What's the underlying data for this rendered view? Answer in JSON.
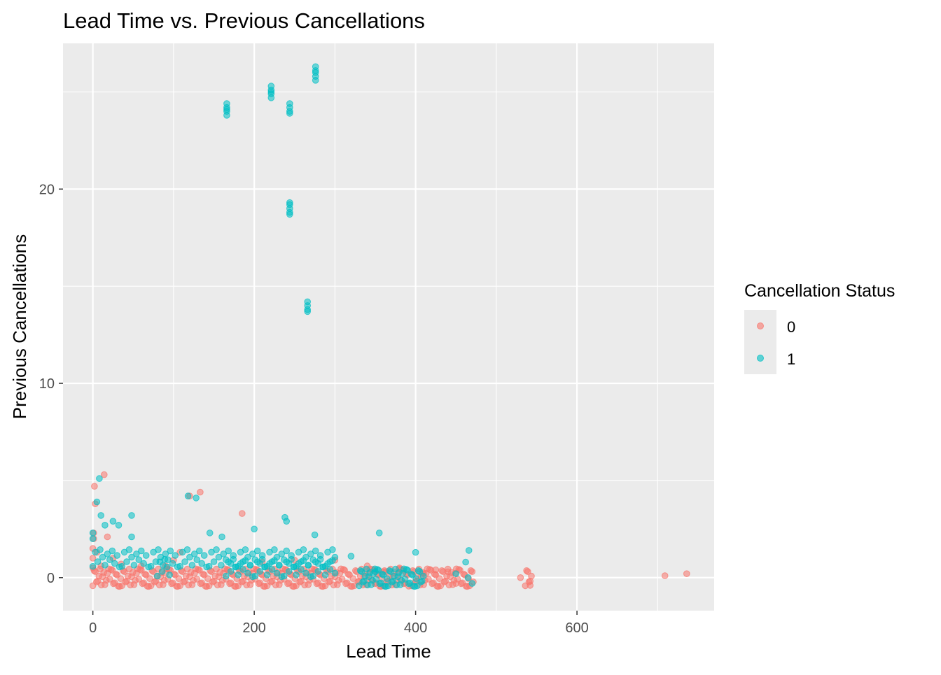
{
  "chart_data": {
    "type": "scatter",
    "title": "Lead Time vs. Previous Cancellations",
    "xlabel": "Lead Time",
    "ylabel": "Previous Cancellations",
    "xlim": [
      -37,
      770
    ],
    "ylim": [
      -1.7,
      27.5
    ],
    "xticks": [
      0,
      200,
      400,
      600
    ],
    "yticks": [
      0,
      10,
      20
    ],
    "grid": true,
    "legend": {
      "title": "Cancellation Status",
      "placement": "right",
      "entries": [
        "0",
        "1"
      ]
    },
    "colors": {
      "0": "#F8766D",
      "1": "#00BFC4",
      "panel": "#EBEBEB",
      "grid": "#FFFFFF"
    },
    "series": [
      {
        "name": "0",
        "bands": [
          {
            "x_from": 0,
            "x_to": 390,
            "y": 0
          },
          {
            "x_from": 395,
            "x_to": 470,
            "y": 0
          },
          {
            "x_from": 536,
            "x_to": 542,
            "y": 0
          }
        ],
        "points": [
          [
            0,
            0.5
          ],
          [
            0,
            1.0
          ],
          [
            0,
            1.5
          ],
          [
            1,
            2.0
          ],
          [
            1,
            2.3
          ],
          [
            2,
            4.7
          ],
          [
            3,
            3.8
          ],
          [
            14,
            5.3
          ],
          [
            5,
            1.3
          ],
          [
            10,
            0.6
          ],
          [
            18,
            2.1
          ],
          [
            25,
            1.0
          ],
          [
            35,
            0.7
          ],
          [
            60,
            0.6
          ],
          [
            90,
            0.6
          ],
          [
            100,
            0.9
          ],
          [
            108,
            1.3
          ],
          [
            133,
            4.4
          ],
          [
            120,
            4.2
          ],
          [
            185,
            3.3
          ],
          [
            210,
            0.8
          ],
          [
            250,
            0.9
          ],
          [
            300,
            0.9
          ],
          [
            340,
            0.6
          ],
          [
            360,
            0.3
          ],
          [
            380,
            0.5
          ],
          [
            410,
            0.2
          ],
          [
            425,
            0.4
          ],
          [
            440,
            0.3
          ],
          [
            450,
            -0.3
          ],
          [
            530,
            0.0
          ],
          [
            542,
            -0.4
          ],
          [
            709,
            0.1
          ],
          [
            736,
            0.2
          ]
        ]
      },
      {
        "name": "1",
        "bands": [
          {
            "x_from": 0,
            "x_to": 300,
            "y": 1
          },
          {
            "x_from": 80,
            "x_to": 95,
            "y": 0.5
          },
          {
            "x_from": 165,
            "x_to": 300,
            "y": 0.5
          },
          {
            "x_from": 330,
            "x_to": 410,
            "y": 0
          }
        ],
        "points": [
          [
            0,
            2.3
          ],
          [
            0,
            2.0
          ],
          [
            5,
            3.9
          ],
          [
            8,
            5.1
          ],
          [
            10,
            3.2
          ],
          [
            15,
            2.7
          ],
          [
            25,
            2.9
          ],
          [
            32,
            2.7
          ],
          [
            48,
            3.2
          ],
          [
            48,
            2.1
          ],
          [
            118,
            4.2
          ],
          [
            128,
            4.1
          ],
          [
            145,
            2.3
          ],
          [
            160,
            2.1
          ],
          [
            200,
            2.5
          ],
          [
            238,
            3.1
          ],
          [
            240,
            2.9
          ],
          [
            275,
            2.2
          ],
          [
            355,
            2.3
          ],
          [
            400,
            1.3
          ],
          [
            320,
            1.1
          ],
          [
            350,
            0.3
          ],
          [
            450,
            0.2
          ],
          [
            462,
            0.8
          ],
          [
            466,
            1.4
          ],
          [
            470,
            -0.3
          ],
          [
            465,
            0.0
          ],
          [
            166,
            24.0
          ],
          [
            166,
            24.2
          ],
          [
            166,
            23.8
          ],
          [
            166,
            24.4
          ],
          [
            166,
            24.1
          ],
          [
            221,
            24.9
          ],
          [
            221,
            25.1
          ],
          [
            221,
            25.3
          ],
          [
            221,
            24.7
          ],
          [
            221,
            25.0
          ],
          [
            244,
            24.0
          ],
          [
            244,
            24.2
          ],
          [
            244,
            24.4
          ],
          [
            244,
            23.9
          ],
          [
            276,
            26.1
          ],
          [
            276,
            25.8
          ],
          [
            276,
            26.3
          ],
          [
            276,
            25.6
          ],
          [
            276,
            26.0
          ],
          [
            244,
            19.0
          ],
          [
            244,
            19.2
          ],
          [
            244,
            18.8
          ],
          [
            244,
            18.7
          ],
          [
            244,
            19.3
          ],
          [
            266,
            14.0
          ],
          [
            266,
            14.2
          ],
          [
            266,
            13.8
          ],
          [
            266,
            13.7
          ]
        ]
      }
    ]
  }
}
